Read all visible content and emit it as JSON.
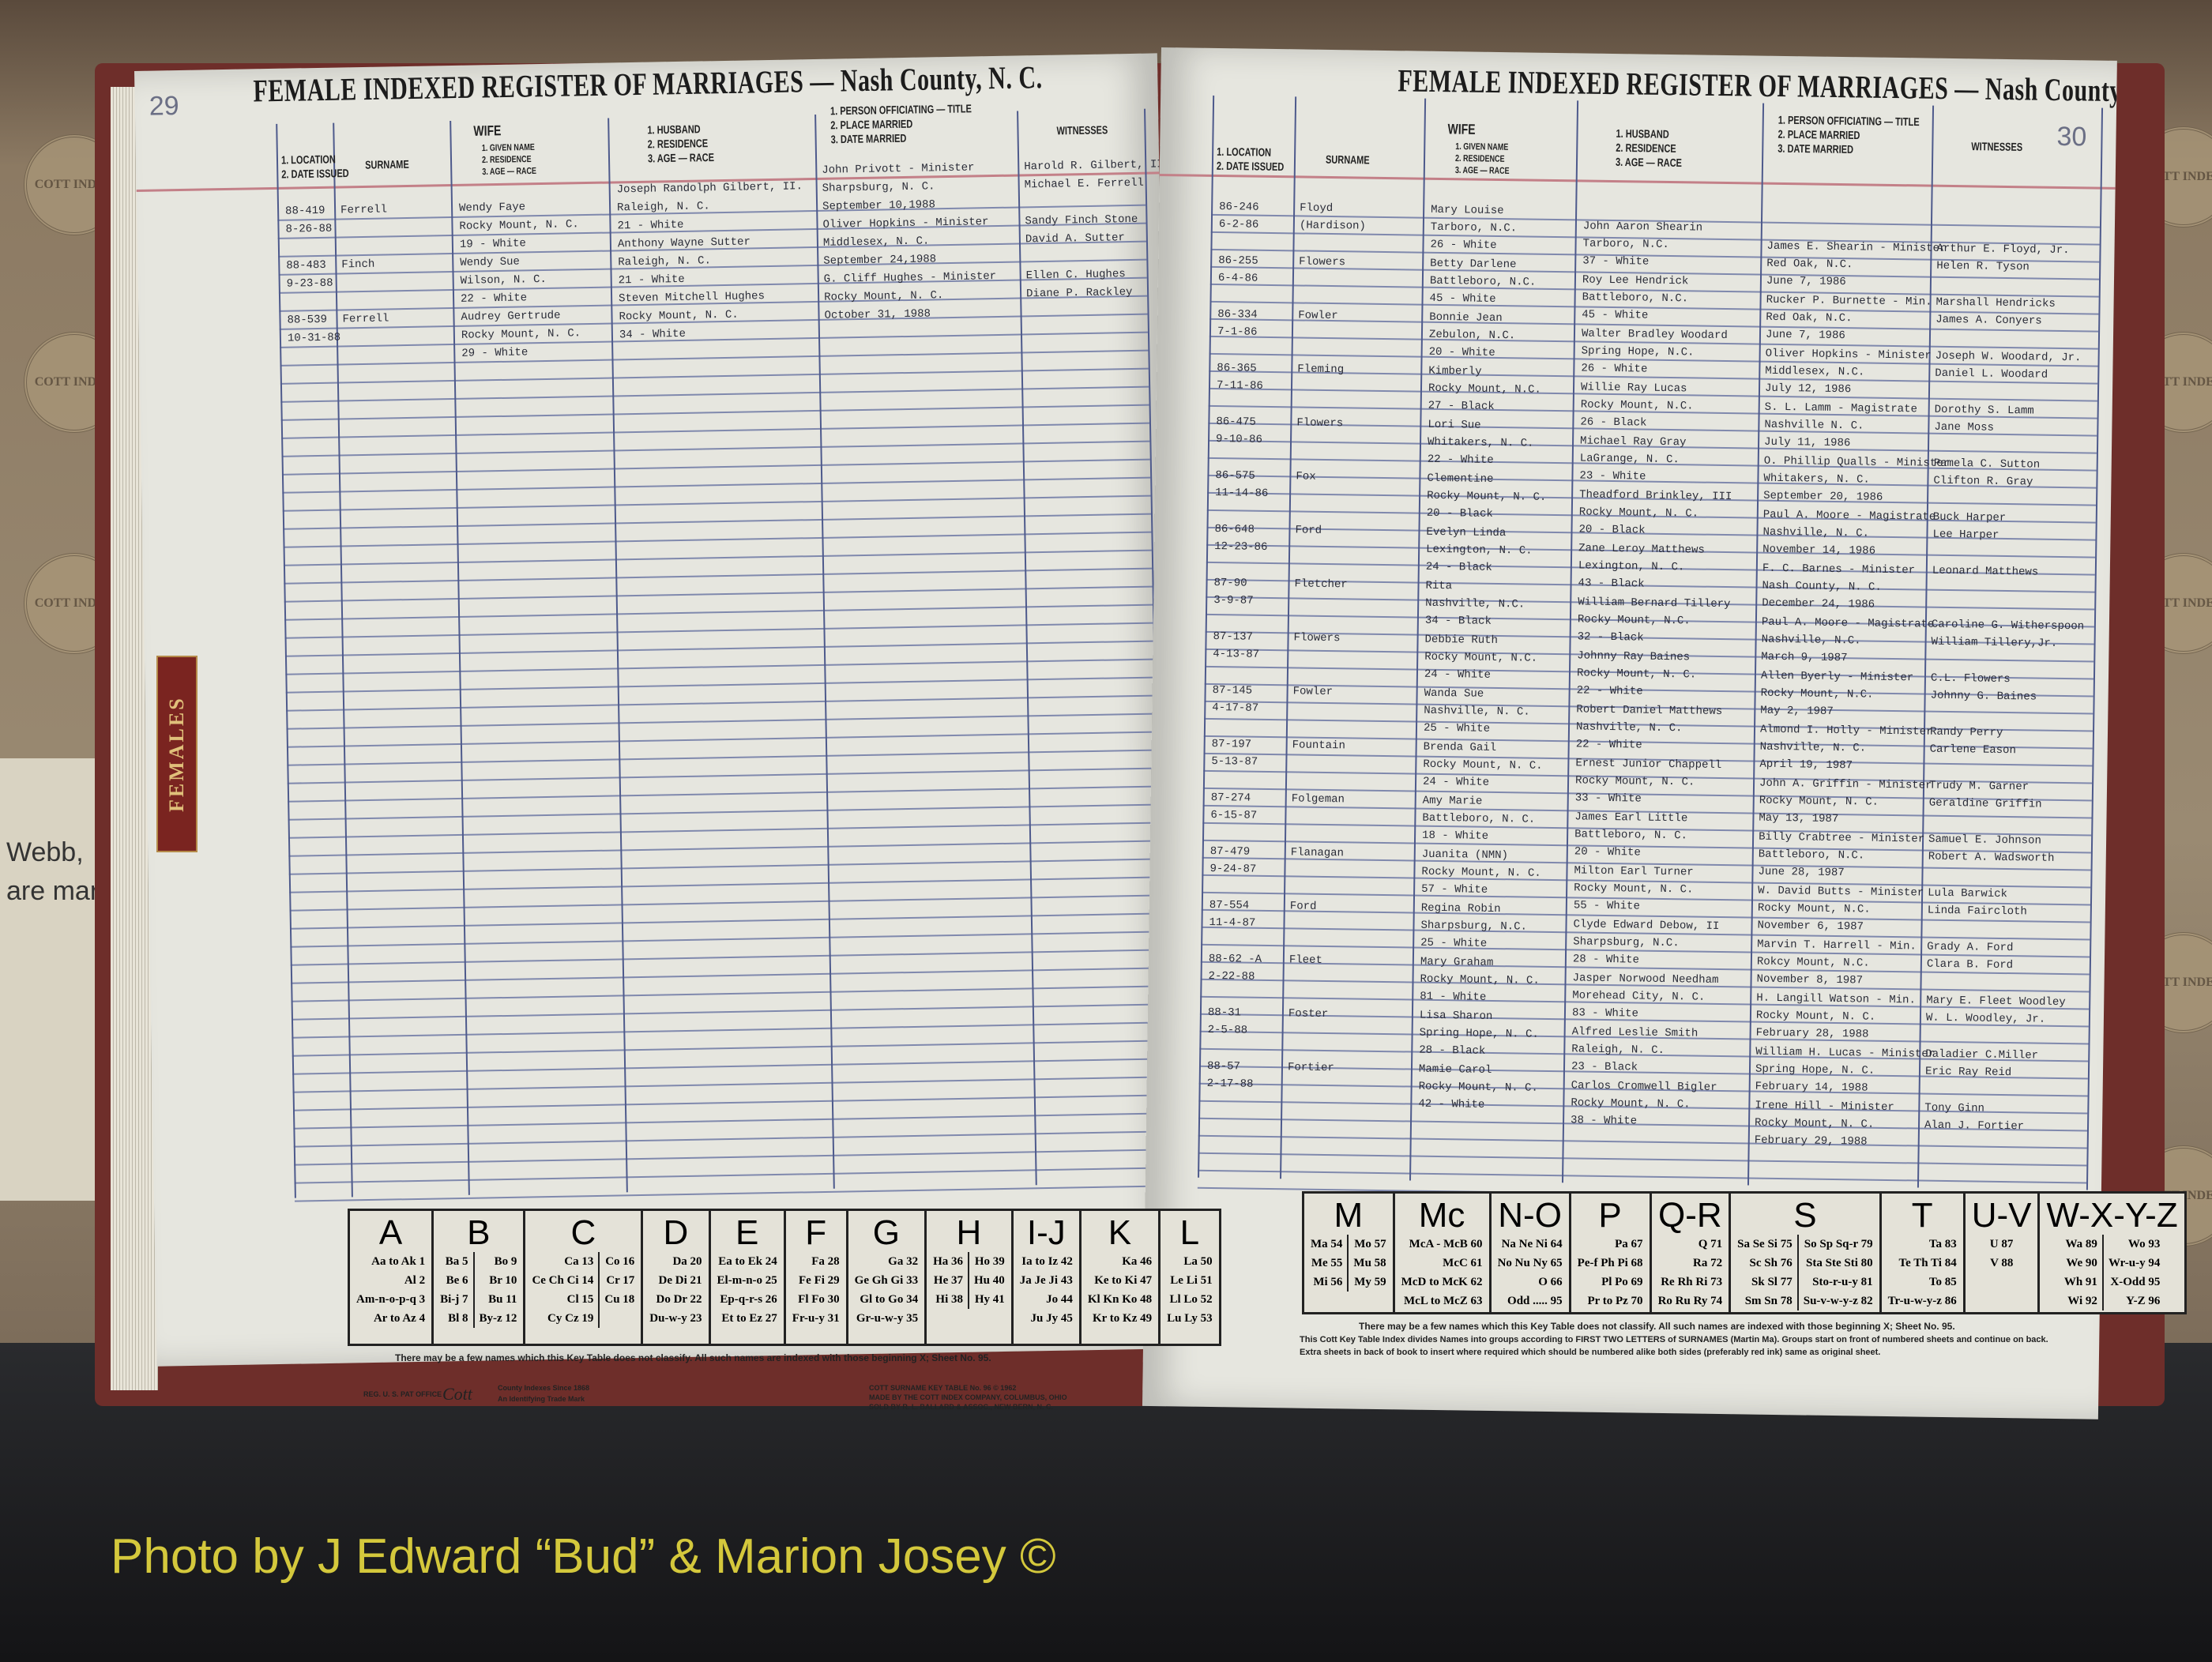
{
  "header": {
    "title_left": "FEMALE INDEXED REGISTER OF MARRIAGES — Nash County, N. C.",
    "title_right": "FEMALE INDEXED REGISTER OF MARRIAGES — Nash County, N. C.",
    "page_left": "29",
    "page_right": "30"
  },
  "columns": {
    "location": "1. LOCATION",
    "date_issued": "2. DATE ISSUED",
    "surname": "SURNAME",
    "wife": "WIFE",
    "wife_sub": [
      "1. GIVEN NAME",
      "2. RESIDENCE",
      "3. AGE — RACE"
    ],
    "husband_sub": [
      "1. HUSBAND",
      "2. RESIDENCE",
      "3. AGE — RACE"
    ],
    "officiant_sub": [
      "1. PERSON OFFICIATING — TITLE",
      "2. PLACE MARRIED",
      "3. DATE MARRIED"
    ],
    "witnesses": "WITNESSES"
  },
  "tab_label": "FEMALES",
  "left_entries": [
    {
      "loc": "88-419",
      "date": "8-26-88",
      "surname": "Ferrell",
      "wife": [
        "Wendy Faye",
        "Rocky Mount, N. C.",
        "19   -   White"
      ],
      "husband": [
        "Joseph Randolph Gilbert, II.",
        "Raleigh, N. C.",
        "21   -   White"
      ],
      "officiant": [
        "John Privott - Minister",
        "Sharpsburg, N. C.",
        "September 10,1988"
      ],
      "witnesses": [
        "Harold R. Gilbert, II",
        "Michael E. Ferrell"
      ]
    },
    {
      "loc": "88-483",
      "date": "9-23-88",
      "surname": "Finch",
      "wife": [
        "Wendy Sue",
        "Wilson, N. C.",
        "22   -   White"
      ],
      "husband": [
        "Anthony Wayne Sutter",
        "Raleigh, N. C.",
        "21   -   White"
      ],
      "officiant": [
        "Oliver Hopkins - Minister",
        "Middlesex, N. C.",
        "September 24,1988"
      ],
      "witnesses": [
        "Sandy Finch Stone",
        "David A. Sutter"
      ]
    },
    {
      "loc": "88-539",
      "date": "10-31-88",
      "surname": "Ferrell",
      "wife": [
        "Audrey Gertrude",
        "Rocky Mount, N. C.",
        "29   -   White"
      ],
      "husband": [
        "Steven Mitchell Hughes",
        "Rocky Mount, N. C.",
        "34   -   White"
      ],
      "officiant": [
        "G. Cliff Hughes - Minister",
        "Rocky Mount, N. C.",
        "October 31, 1988"
      ],
      "witnesses": [
        "Ellen C. Hughes",
        "Diane P. Rackley"
      ]
    }
  ],
  "right_entries": [
    {
      "loc": "86-246",
      "date": "6-2-86",
      "surname": "Floyd",
      "surname2": "(Hardison)",
      "wife": [
        "Mary Louise",
        "Tarboro, N.C.",
        "26   -   White"
      ],
      "husband": [
        "John Aaron Shearin",
        "Tarboro, N.C.",
        "37   -   White"
      ],
      "officiant": [
        "James E. Shearin - Minister",
        "Red Oak, N.C.",
        "June 7, 1986"
      ],
      "witnesses": [
        "Arthur E. Floyd, Jr.",
        "Helen R. Tyson"
      ]
    },
    {
      "loc": "86-255",
      "date": "6-4-86",
      "surname": "Flowers",
      "wife": [
        "Betty Darlene",
        "Battleboro, N.C.",
        "45   -   White"
      ],
      "husband": [
        "Roy Lee Hendrick",
        "Battleboro, N.C.",
        "45   -   White"
      ],
      "officiant": [
        "Rucker P. Burnette - Min.",
        "Red Oak, N.C.",
        "June 7, 1986"
      ],
      "witnesses": [
        "Marshall Hendricks",
        "James A. Conyers"
      ]
    },
    {
      "loc": "86-334",
      "date": "7-1-86",
      "surname": "Fowler",
      "wife": [
        "Bonnie Jean",
        "Zebulon, N.C.",
        "20   -   White"
      ],
      "husband": [
        "Walter Bradley Woodard",
        "Spring Hope, N.C.",
        "26   -   White"
      ],
      "officiant": [
        "Oliver Hopkins - Minister",
        "Middlesex, N.C.",
        "July 12, 1986"
      ],
      "witnesses": [
        "Joseph W. Woodard, Jr.",
        "Daniel L. Woodard"
      ]
    },
    {
      "loc": "86-365",
      "date": "7-11-86",
      "surname": "Fleming",
      "wife": [
        "Kimberly",
        "Rocky Mount, N.C.",
        "27   -   Black"
      ],
      "husband": [
        "Willie Ray Lucas",
        "Rocky Mount, N.C.",
        "26   -   Black"
      ],
      "officiant": [
        "S. L. Lamm - Magistrate",
        "Nashville N. C.",
        "July 11, 1986"
      ],
      "witnesses": [
        "Dorothy S. Lamm",
        "Jane Moss"
      ]
    },
    {
      "loc": "86-475",
      "date": "9-10-86",
      "surname": "Flowers",
      "wife": [
        "Lori Sue",
        "Whitakers, N. C.",
        "22   -   White"
      ],
      "husband": [
        "Michael Ray Gray",
        "LaGrange, N. C.",
        "23   -   White"
      ],
      "officiant": [
        "O. Phillip Qualls - Minister",
        "Whitakers, N. C.",
        "September 20, 1986"
      ],
      "witnesses": [
        "Pamela C. Sutton",
        "Clifton R. Gray"
      ]
    },
    {
      "loc": "86-575",
      "date": "11-14-86",
      "surname": "Fox",
      "wife": [
        "Clementine",
        "Rocky Mount, N. C.",
        "20   -   Black"
      ],
      "husband": [
        "Theadford Brinkley, III",
        "Rocky Mount, N. C.",
        "20   -   Black"
      ],
      "officiant": [
        "Paul A. Moore - Magistrate",
        "Nashville, N. C.",
        "November 14, 1986"
      ],
      "witnesses": [
        "Buck Harper",
        "Lee Harper"
      ]
    },
    {
      "loc": "86-648",
      "date": "12-23-86",
      "surname": "Ford",
      "wife": [
        "Evelyn Linda",
        "Lexington, N. C.",
        "24   -   Black"
      ],
      "husband": [
        "Zane Leroy Matthews",
        "Lexington, N. C.",
        "43   -   Black"
      ],
      "officiant": [
        "F. C. Barnes - Minister",
        "Nash County, N. C.",
        "December 24, 1986"
      ],
      "witnesses": [
        "Leonard Matthews",
        ""
      ]
    },
    {
      "loc": "87-90",
      "date": "3-9-87",
      "surname": "Fletcher",
      "wife": [
        "Rita",
        "Nashville, N.C.",
        "34   -   Black"
      ],
      "husband": [
        "William Bernard Tillery",
        "Rocky Mount, N.C.",
        "32   -   Black"
      ],
      "officiant": [
        "Paul A. Moore - Magistrate",
        "Nashville, N.C.",
        "March 9, 1987"
      ],
      "witnesses": [
        "Caroline G. Witherspoon",
        "William Tillery,Jr."
      ]
    },
    {
      "loc": "87-137",
      "date": "4-13-87",
      "surname": "Flowers",
      "wife": [
        "Debbie Ruth",
        "Rocky Mount, N.C.",
        "24   -   White"
      ],
      "husband": [
        "Johnny Ray Baines",
        "Rocky Mount, N. C.",
        "22   -   White"
      ],
      "officiant": [
        "Allen Byerly - Minister",
        "Rocky Mount, N.C.",
        "May 2, 1987"
      ],
      "witnesses": [
        "C.L. Flowers",
        "Johnny G. Baines"
      ]
    },
    {
      "loc": "87-145",
      "date": "4-17-87",
      "surname": "Fowler",
      "wife": [
        "Wanda Sue",
        "Nashville, N. C.",
        "25   -   White"
      ],
      "husband": [
        "Robert Daniel Matthews",
        "Nashville, N. C.",
        "22   -   White"
      ],
      "officiant": [
        "Almond I. Holly - Minister",
        "Nashville, N. C.",
        "April 19, 1987"
      ],
      "witnesses": [
        "Randy Perry",
        "Carlene Eason"
      ]
    },
    {
      "loc": "87-197",
      "date": "5-13-87",
      "surname": "Fountain",
      "wife": [
        "Brenda Gail",
        "Rocky Mount, N. C.",
        "24   -   White"
      ],
      "husband": [
        "Ernest Junior Chappell",
        "Rocky Mount, N. C.",
        "33   -   White"
      ],
      "officiant": [
        "John A. Griffin - Minister",
        "Rocky Mount, N. C.",
        "May 13, 1987"
      ],
      "witnesses": [
        "Trudy M. Garner",
        "Geraldine Griffin"
      ]
    },
    {
      "loc": "87-274",
      "date": "6-15-87",
      "surname": "Folgeman",
      "wife": [
        "Amy Marie",
        "Battleboro, N. C.",
        "18   -   White"
      ],
      "husband": [
        "James Earl Little",
        "Battleboro, N. C.",
        "20   -   White"
      ],
      "officiant": [
        "Billy Crabtree - Minister",
        "Battleboro, N.C.",
        "June 28, 1987"
      ],
      "witnesses": [
        "Samuel E. Johnson",
        "Robert A. Wadsworth"
      ]
    },
    {
      "loc": "87-479",
      "date": "9-24-87",
      "surname": "Flanagan",
      "wife": [
        "Juanita  (NMN)",
        "Rocky Mount, N. C.",
        "57   -   White"
      ],
      "husband": [
        "Milton Earl Turner",
        "Rocky Mount, N. C.",
        "55   -   White"
      ],
      "officiant": [
        "W. David Butts - Minister",
        "Rocky Mount, N.C.",
        "November 6, 1987"
      ],
      "witnesses": [
        "Lula Barwick",
        "Linda Faircloth"
      ]
    },
    {
      "loc": "87-554",
      "date": "11-4-87",
      "surname": "Ford",
      "wife": [
        "Regina Robin",
        "Sharpsburg, N.C.",
        "25   -   White"
      ],
      "husband": [
        "Clyde Edward Debow, II",
        "Sharpsburg, N.C.",
        "28   -   White"
      ],
      "officiant": [
        "Marvin T. Harrell - Min.",
        "Rokcy Mount, N.C.",
        "November 8, 1987"
      ],
      "witnesses": [
        "Grady A. Ford",
        "Clara B. Ford"
      ]
    },
    {
      "loc": "88-62 -A",
      "date": "2-22-88",
      "surname": "Fleet",
      "wife": [
        "Mary Graham",
        "Rocky Mount, N. C.",
        "81   -   White"
      ],
      "husband": [
        "Jasper Norwood Needham",
        "Morehead City, N. C.",
        "83   -   White"
      ],
      "officiant": [
        "H. Langill Watson - Min.",
        "Rocky Mount, N. C.",
        "February 28, 1988"
      ],
      "witnesses": [
        "Mary E. Fleet Woodley",
        "W. L. Woodley, Jr."
      ]
    },
    {
      "loc": "88-31",
      "date": "2-5-88",
      "surname": "Foster",
      "wife": [
        "Lisa Sharon",
        "Spring Hope, N. C.",
        "28   -   Black"
      ],
      "husband": [
        "Alfred Leslie Smith",
        "Raleigh, N. C.",
        "23   -   Black"
      ],
      "officiant": [
        "William H. Lucas - Minister",
        "Spring Hope, N. C.",
        "February 14, 1988"
      ],
      "witnesses": [
        "Daladier C.Miller",
        "Eric Ray Reid"
      ]
    },
    {
      "loc": "88-57",
      "date": "2-17-88",
      "surname": "Fortier",
      "wife": [
        "Mamie Carol",
        "Rocky Mount, N. C.",
        "42   -   White"
      ],
      "husband": [
        "Carlos Cromwell Bigler",
        "Rocky Mount, N. C.",
        "38   -   White"
      ],
      "officiant": [
        "Irene Hill - Minister",
        "Rocky Mount, N. C.",
        "February 29, 1988"
      ],
      "witnesses": [
        "Tony Ginn",
        "Alan J. Fortier"
      ]
    }
  ],
  "key_left": [
    {
      "letter": "A",
      "cols": [
        [
          "Aa to Ak 1",
          "Al 2",
          "Am-n-o-p-q 3",
          "Ar to Az 4"
        ]
      ]
    },
    {
      "letter": "B",
      "cols": [
        [
          "Ba 5",
          "Be 6",
          "Bi-j 7",
          "Bl 8"
        ],
        [
          "Bo 9",
          "Br 10",
          "Bu 11",
          "By-z 12"
        ]
      ]
    },
    {
      "letter": "C",
      "cols": [
        [
          "Ca 13",
          "Ce Ch Ci 14",
          "Cl 15",
          "Cy Cz 19"
        ],
        [
          "Co 16",
          "Cr 17",
          "Cu 18"
        ]
      ]
    },
    {
      "letter": "D",
      "cols": [
        [
          "Da 20",
          "De Di 21",
          "Do Dr 22",
          "Du-w-y 23"
        ]
      ]
    },
    {
      "letter": "E",
      "cols": [
        [
          "Ea to Ek 24",
          "El-m-n-o 25",
          "Ep-q-r-s 26",
          "Et to Ez 27"
        ]
      ]
    },
    {
      "letter": "F",
      "cols": [
        [
          "Fa 28",
          "Fe Fi 29",
          "Fl Fo 30",
          "Fr-u-y 31"
        ]
      ]
    },
    {
      "letter": "G",
      "cols": [
        [
          "Ga 32",
          "Ge Gh Gi 33",
          "Gl to Go 34",
          "Gr-u-w-y 35"
        ]
      ]
    },
    {
      "letter": "H",
      "cols": [
        [
          "Ha 36",
          "He 37",
          "Hi 38"
        ],
        [
          "Ho 39",
          "Hu 40",
          "Hy 41"
        ]
      ]
    },
    {
      "letter": "I-J",
      "cols": [
        [
          "Ia to Iz 42",
          "Ja Je Ji 43",
          "Jo 44",
          "Ju Jy 45"
        ]
      ]
    },
    {
      "letter": "K",
      "cols": [
        [
          "Ka 46",
          "Ke to Ki 47",
          "Kl Kn Ko 48",
          "Kr to Kz 49"
        ]
      ]
    },
    {
      "letter": "L",
      "cols": [
        [
          "La 50",
          "Le Li 51",
          "Ll Lo 52",
          "Lu Ly 53"
        ]
      ]
    }
  ],
  "key_right": [
    {
      "letter": "M",
      "cols": [
        [
          "Ma 54",
          "Me 55",
          "Mi 56"
        ],
        [
          "Mo 57",
          "Mu 58",
          "My 59"
        ]
      ]
    },
    {
      "letter": "Mc",
      "cols": [
        [
          "McA - McB 60",
          "McC 61",
          "McD to McK 62",
          "McL to McZ 63"
        ]
      ]
    },
    {
      "letter": "N-O",
      "cols": [
        [
          "Na Ne Ni 64",
          "No Nu Ny 65",
          "O 66",
          "Odd ..... 95"
        ]
      ]
    },
    {
      "letter": "P",
      "cols": [
        [
          "Pa 67",
          "Pe-f Ph Pi 68",
          "Pl Po 69",
          "Pr to Pz 70"
        ]
      ]
    },
    {
      "letter": "Q-R",
      "cols": [
        [
          "Q 71",
          "Ra 72",
          "Re Rh Ri 73",
          "Ro Ru Ry 74"
        ]
      ]
    },
    {
      "letter": "S",
      "cols": [
        [
          "Sa Se Si 75",
          "Sc Sh 76",
          "Sk Sl 77",
          "Sm Sn 78"
        ],
        [
          "So Sp Sq-r 79",
          "Sta Ste Sti 80",
          "Sto-r-u-y 81",
          "Su-v-w-y-z 82"
        ]
      ]
    },
    {
      "letter": "T",
      "cols": [
        [
          "Ta 83",
          "Te Th Ti 84",
          "To 85",
          "Tr-u-w-y-z 86"
        ]
      ]
    },
    {
      "letter": "U-V",
      "cols": [
        [
          "U 87",
          "V 88"
        ]
      ]
    },
    {
      "letter": "W-X-Y-Z",
      "cols": [
        [
          "Wa 89",
          "We 90",
          "Wh 91",
          "Wi 92"
        ],
        [
          "Wo 93",
          "Wr-u-y 94",
          "X-Odd 95",
          "Y-Z 96"
        ]
      ]
    }
  ],
  "key_note": "There may be a few names which this Key Table does not classify.   All such names are indexed with those beginning X; Sheet No. 95.",
  "footer_left": {
    "reg": "REG. U. S. PAT OFFICE",
    "logo": "Cott",
    "since": "County Indexes Since 1868",
    "trademark": "An Identifying Trade Mark",
    "key_table": "COTT SURNAME KEY TABLE No. 96 © 1962",
    "made_by": "MADE BY THE COTT INDEX COMPANY, COLUMBUS, OHIO",
    "sold_by": "SOLD BY R. L. BALLARD & ASSOC., NEW BERN, N. C."
  },
  "footer_right": {
    "line1": "This Cott Key Table Index divides Names into groups according to FIRST TWO LETTERS of SURNAMES (Martin Ma). Groups start on front of numbered sheets and continue on back.",
    "line2": "Extra sheets in back of book to insert where required which should be numbered alike both sides (preferably red ink) same as original sheet."
  },
  "background": {
    "clipping_lines": [
      "Webb,",
      "are mar"
    ],
    "seal_text": "COTT INDEX"
  },
  "watermark": "Photo by J Edward “Bud” & Marion Josey ©",
  "colors": {
    "ruling": "#5d6a9c",
    "red_rule": "#c38088",
    "page": "#e6e6df",
    "tab": "#7a2420",
    "watermark": "#d4c83c"
  }
}
